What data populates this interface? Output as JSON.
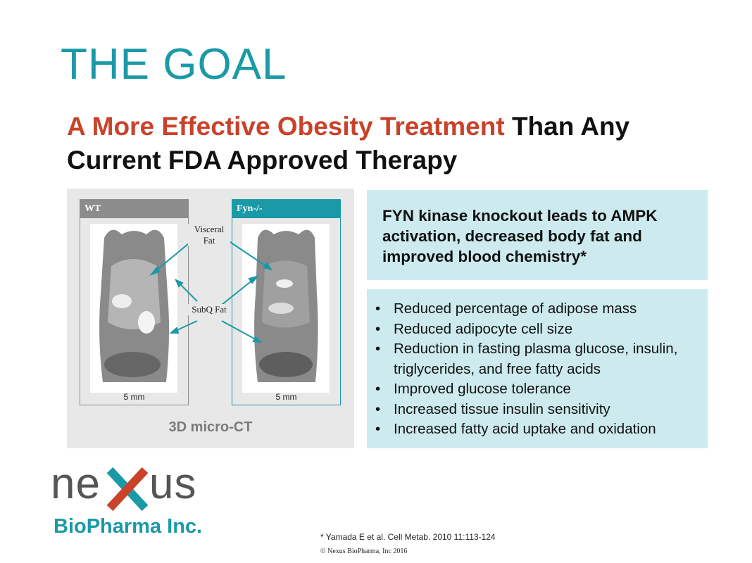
{
  "slide": {
    "title": "THE GOAL",
    "subtitle": {
      "highlight": "A More Effective Obesity Treatment",
      "rest": "Than Any Current FDA Approved Therapy"
    },
    "figure": {
      "panels": [
        {
          "label": "WT",
          "scale": "5 mm"
        },
        {
          "label": "Fyn-/-",
          "scale": "5 mm"
        }
      ],
      "annotations": [
        "Visceral Fat",
        "SubQ Fat"
      ],
      "caption": "3D micro-CT"
    },
    "headline": "FYN kinase knockout leads to AMPK activation, decreased body fat and improved blood chemistry*",
    "bullets": [
      "Reduced percentage of adipose mass",
      "Reduced adipocyte cell size",
      "Reduction in fasting plasma glucose, insulin, triglycerides, and free fatty acids",
      "Improved glucose tolerance",
      "Increased tissue insulin sensitivity",
      "Increased fatty acid uptake and oxidation"
    ],
    "logo": {
      "word_start": "ne",
      "word_end": "us",
      "company": "BioPharma Inc."
    },
    "footnote": "* Yamada E et al. Cell Metab. 2010 11:113-124",
    "copyright": "© Nexus BioPharma, Inc 2016"
  }
}
